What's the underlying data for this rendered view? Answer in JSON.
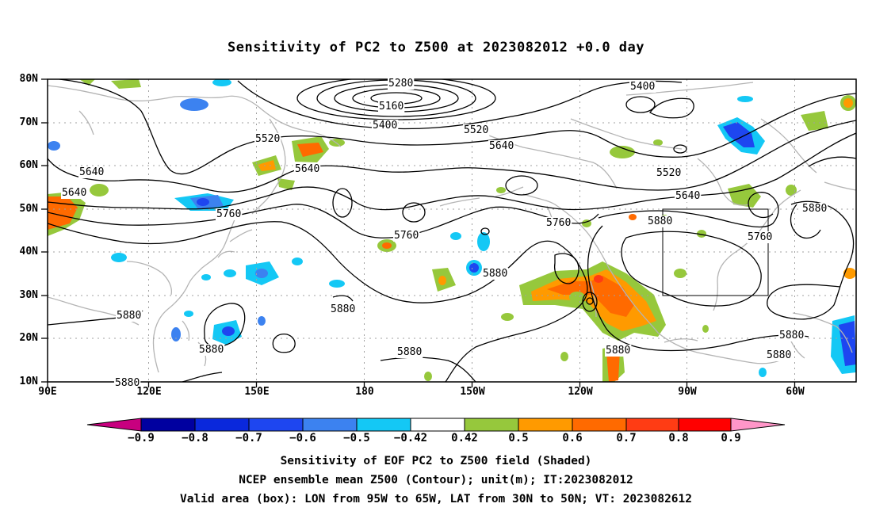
{
  "title": "Sensitivity of PC2 to Z500 at 2023082012 +0.0 day",
  "lat_labels": [
    "80N",
    "70N",
    "60N",
    "50N",
    "40N",
    "30N",
    "20N",
    "10N"
  ],
  "lon_labels": [
    "90E",
    "120E",
    "150E",
    "180",
    "150W",
    "120W",
    "90W",
    "60W"
  ],
  "contour_labels": [
    {
      "text": "5280"
    },
    {
      "text": "5160"
    },
    {
      "text": "5400"
    },
    {
      "text": "5400"
    },
    {
      "text": "5520"
    },
    {
      "text": "5520"
    },
    {
      "text": "5520"
    },
    {
      "text": "5640"
    },
    {
      "text": "5640"
    },
    {
      "text": "5640"
    },
    {
      "text": "5640"
    },
    {
      "text": "5640"
    },
    {
      "text": "5760"
    },
    {
      "text": "5760"
    },
    {
      "text": "5760"
    },
    {
      "text": "5760"
    },
    {
      "text": "5880"
    },
    {
      "text": "5880"
    },
    {
      "text": "5880"
    },
    {
      "text": "5880"
    },
    {
      "text": "5880"
    },
    {
      "text": "5880"
    },
    {
      "text": "5880"
    },
    {
      "text": "5880"
    },
    {
      "text": "5880"
    },
    {
      "text": "5880"
    },
    {
      "text": "5880"
    }
  ],
  "colorbar": {
    "labels": [
      "−0.9",
      "−0.8",
      "−0.7",
      "−0.6",
      "−0.5",
      "−0.42",
      "0.42",
      "0.5",
      "0.6",
      "0.7",
      "0.8",
      "0.9"
    ],
    "colors": [
      "#c8007f",
      "#0000a0",
      "#0a28dc",
      "#1e46f0",
      "#3c82f0",
      "#14c8f5",
      "#ffffff",
      "#96c83c",
      "#ff9a00",
      "#ff6a00",
      "#ff3c14",
      "#ff0000",
      "#ff96c8"
    ]
  },
  "captions": [
    "Sensitivity of EOF PC2 to Z500 field (Shaded)",
    "NCEP ensemble mean Z500 (Contour); unit(m); IT:2023082012",
    "Valid area (box): LON from 95W to 65W, LAT from 30N to 50N; VT: 2023082612"
  ]
}
